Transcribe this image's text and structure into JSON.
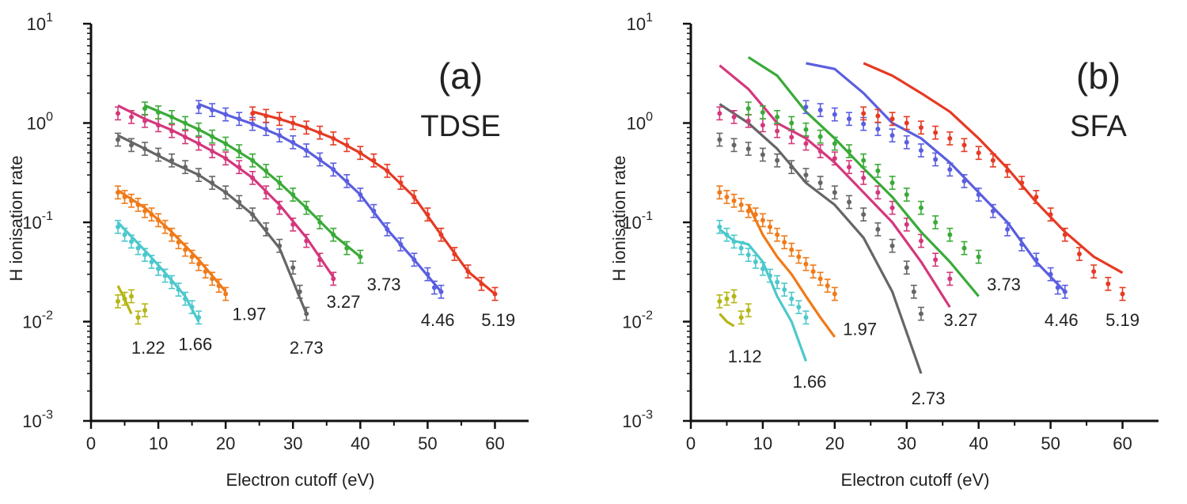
{
  "chart_data": [
    {
      "type": "scatter",
      "panel_label": "(a)",
      "method_label": "TDSE",
      "xlabel": "Electron cutoff (eV)",
      "ylabel": "H ionisation rate",
      "xlim": [
        0,
        65
      ],
      "ylim": [
        0.001,
        10
      ],
      "y_scale": "log",
      "x_ticks": [
        "0",
        "10",
        "20",
        "30",
        "40",
        "50",
        "60"
      ],
      "y_ticks": [
        {
          "base": "10",
          "exp": "-3"
        },
        {
          "base": "10",
          "exp": "-2"
        },
        {
          "base": "10",
          "exp": "-1"
        },
        {
          "base": "10",
          "exp": "0"
        },
        {
          "base": "10",
          "exp": "1"
        }
      ],
      "series": [
        {
          "name": "1.22",
          "color": "#b5b516",
          "label_x": 8.5,
          "label_y": 0.0055,
          "x": [
            4,
            5,
            6,
            7,
            8
          ],
          "y": [
            0.016,
            0.017,
            0.018,
            0.011,
            0.013
          ],
          "fit_x": [
            4,
            5,
            6
          ],
          "fit_y": [
            0.023,
            0.017,
            0.012
          ]
        },
        {
          "name": "1.66",
          "color": "#4cc8cc",
          "label_x": 15.5,
          "label_y": 0.006,
          "x": [
            4,
            5,
            6,
            7,
            8,
            9,
            10,
            11,
            12,
            13,
            14,
            15,
            16
          ],
          "y": [
            0.09,
            0.075,
            0.064,
            0.055,
            0.047,
            0.04,
            0.034,
            0.029,
            0.025,
            0.021,
            0.017,
            0.014,
            0.011
          ],
          "fit_x": [
            4,
            6,
            8,
            10,
            12,
            14,
            16
          ],
          "fit_y": [
            0.1,
            0.072,
            0.052,
            0.037,
            0.026,
            0.018,
            0.01
          ]
        },
        {
          "name": "1.97",
          "color": "#f07a18",
          "label_x": 23.5,
          "label_y": 0.012,
          "x": [
            4,
            5,
            6,
            7,
            8,
            9,
            10,
            11,
            12,
            13,
            14,
            15,
            16,
            17,
            18,
            19,
            20
          ],
          "y": [
            0.2,
            0.18,
            0.165,
            0.15,
            0.13,
            0.12,
            0.105,
            0.09,
            0.075,
            0.063,
            0.053,
            0.045,
            0.038,
            0.032,
            0.027,
            0.023,
            0.019
          ],
          "fit_x": [
            4,
            8,
            12,
            16,
            20
          ],
          "fit_y": [
            0.21,
            0.14,
            0.08,
            0.042,
            0.02
          ]
        },
        {
          "name": "2.73",
          "color": "#666666",
          "label_x": 32,
          "label_y": 0.0055,
          "x": [
            4,
            6,
            8,
            10,
            12,
            14,
            16,
            18,
            20,
            22,
            24,
            26,
            28,
            30,
            31,
            32
          ],
          "y": [
            0.68,
            0.6,
            0.55,
            0.48,
            0.42,
            0.36,
            0.3,
            0.25,
            0.2,
            0.16,
            0.12,
            0.085,
            0.058,
            0.035,
            0.02,
            0.012
          ],
          "fit_x": [
            4,
            8,
            12,
            16,
            20,
            24,
            28,
            32
          ],
          "fit_y": [
            0.75,
            0.55,
            0.4,
            0.3,
            0.2,
            0.12,
            0.055,
            0.012
          ]
        },
        {
          "name": "3.27",
          "color": "#d4387c",
          "label_x": 37.5,
          "label_y": 0.016,
          "x": [
            4,
            6,
            8,
            10,
            12,
            14,
            16,
            18,
            20,
            22,
            24,
            26,
            28,
            30,
            32,
            34,
            36
          ],
          "y": [
            1.25,
            1.15,
            1.05,
            0.95,
            0.83,
            0.72,
            0.62,
            0.52,
            0.44,
            0.36,
            0.28,
            0.2,
            0.14,
            0.095,
            0.065,
            0.042,
            0.027
          ],
          "fit_x": [
            4,
            8,
            12,
            16,
            20,
            24,
            28,
            32,
            36
          ],
          "fit_y": [
            1.5,
            1.1,
            0.85,
            0.62,
            0.44,
            0.28,
            0.15,
            0.07,
            0.028
          ]
        },
        {
          "name": "3.73",
          "color": "#3aaa38",
          "label_x": 43.5,
          "label_y": 0.024,
          "x": [
            8,
            10,
            12,
            14,
            16,
            18,
            20,
            22,
            24,
            26,
            28,
            30,
            32,
            34,
            36,
            38,
            40
          ],
          "y": [
            1.4,
            1.28,
            1.15,
            1.0,
            0.86,
            0.73,
            0.62,
            0.52,
            0.42,
            0.33,
            0.25,
            0.19,
            0.14,
            0.1,
            0.075,
            0.055,
            0.045
          ],
          "fit_x": [
            8,
            12,
            16,
            20,
            24,
            28,
            32,
            36,
            40
          ],
          "fit_y": [
            1.5,
            1.15,
            0.86,
            0.62,
            0.42,
            0.25,
            0.14,
            0.075,
            0.045
          ]
        },
        {
          "name": "4.46",
          "color": "#5a5ee0",
          "label_x": 51.5,
          "label_y": 0.0105,
          "x": [
            16,
            18,
            20,
            22,
            24,
            26,
            28,
            30,
            32,
            34,
            36,
            38,
            40,
            42,
            44,
            46,
            48,
            50,
            51,
            52
          ],
          "y": [
            1.45,
            1.35,
            1.22,
            1.1,
            0.98,
            0.87,
            0.75,
            0.64,
            0.53,
            0.43,
            0.34,
            0.26,
            0.19,
            0.13,
            0.085,
            0.06,
            0.042,
            0.03,
            0.022,
            0.02
          ],
          "fit_x": [
            16,
            20,
            24,
            28,
            32,
            36,
            40,
            44,
            48,
            52
          ],
          "fit_y": [
            1.55,
            1.22,
            0.98,
            0.75,
            0.53,
            0.34,
            0.19,
            0.085,
            0.042,
            0.02
          ]
        },
        {
          "name": "5.19",
          "color": "#e63a24",
          "label_x": 60.5,
          "label_y": 0.0105,
          "x": [
            24,
            26,
            28,
            30,
            32,
            34,
            36,
            38,
            40,
            42,
            44,
            46,
            48,
            50,
            52,
            54,
            56,
            58,
            60
          ],
          "y": [
            1.25,
            1.18,
            1.1,
            1.0,
            0.9,
            0.8,
            0.7,
            0.6,
            0.5,
            0.42,
            0.33,
            0.25,
            0.18,
            0.12,
            0.075,
            0.048,
            0.032,
            0.024,
            0.019
          ],
          "fit_x": [
            24,
            28,
            32,
            36,
            40,
            44,
            48,
            52,
            56,
            60
          ],
          "fit_y": [
            1.3,
            1.1,
            0.9,
            0.7,
            0.5,
            0.33,
            0.18,
            0.075,
            0.032,
            0.019
          ]
        }
      ]
    },
    {
      "type": "scatter",
      "panel_label": "(b)",
      "method_label": "SFA",
      "xlabel": "Electron cutoff (eV)",
      "ylabel": "H ionisation rate",
      "xlim": [
        0,
        65
      ],
      "ylim": [
        0.001,
        10
      ],
      "y_scale": "log",
      "x_ticks": [
        "0",
        "10",
        "20",
        "30",
        "40",
        "50",
        "60"
      ],
      "y_ticks": [
        {
          "base": "10",
          "exp": "-3"
        },
        {
          "base": "10",
          "exp": "-2"
        },
        {
          "base": "10",
          "exp": "-1"
        },
        {
          "base": "10",
          "exp": "0"
        },
        {
          "base": "10",
          "exp": "1"
        }
      ],
      "series": [
        {
          "name": "1.12",
          "color": "#b5b516",
          "label_x": 7.5,
          "label_y": 0.0045,
          "x": [
            4,
            5,
            6,
            7,
            8
          ],
          "y": [
            0.016,
            0.017,
            0.018,
            0.011,
            0.013
          ],
          "fit_x": [
            4,
            5,
            6
          ],
          "fit_y": [
            0.012,
            0.01,
            0.009
          ]
        },
        {
          "name": "1.66",
          "color": "#4cc8cc",
          "label_x": 16.5,
          "label_y": 0.0025,
          "x": [
            4,
            5,
            6,
            7,
            8,
            9,
            10,
            11,
            12,
            13,
            14,
            15,
            16
          ],
          "y": [
            0.09,
            0.075,
            0.064,
            0.055,
            0.047,
            0.04,
            0.034,
            0.029,
            0.025,
            0.021,
            0.017,
            0.014,
            0.011
          ],
          "fit_x": [
            4,
            6,
            8,
            10,
            12,
            14,
            16
          ],
          "fit_y": [
            0.085,
            0.065,
            0.06,
            0.04,
            0.018,
            0.01,
            0.004
          ]
        },
        {
          "name": "1.97",
          "color": "#f07a18",
          "label_x": 23.5,
          "label_y": 0.0085,
          "x": [
            4,
            5,
            6,
            7,
            8,
            9,
            10,
            11,
            12,
            13,
            14,
            15,
            16,
            17,
            18,
            19,
            20
          ],
          "y": [
            0.2,
            0.18,
            0.165,
            0.15,
            0.13,
            0.12,
            0.105,
            0.09,
            0.075,
            0.063,
            0.053,
            0.045,
            0.038,
            0.032,
            0.027,
            0.023,
            0.019
          ],
          "fit_x": [
            8,
            10,
            12,
            14,
            16,
            18,
            20
          ],
          "fit_y": [
            0.15,
            0.075,
            0.045,
            0.03,
            0.018,
            0.011,
            0.007
          ]
        },
        {
          "name": "2.73",
          "color": "#666666",
          "label_x": 33,
          "label_y": 0.0017,
          "x": [
            4,
            6,
            8,
            10,
            12,
            14,
            16,
            18,
            20,
            22,
            24,
            26,
            28,
            30,
            31,
            32
          ],
          "y": [
            0.68,
            0.6,
            0.55,
            0.48,
            0.42,
            0.36,
            0.3,
            0.25,
            0.2,
            0.16,
            0.12,
            0.085,
            0.058,
            0.035,
            0.02,
            0.012
          ],
          "fit_x": [
            4,
            8,
            12,
            16,
            20,
            24,
            28,
            32
          ],
          "fit_y": [
            1.55,
            1.0,
            0.55,
            0.25,
            0.15,
            0.07,
            0.02,
            0.003
          ]
        },
        {
          "name": "3.27",
          "color": "#d4387c",
          "label_x": 37.5,
          "label_y": 0.0105,
          "x": [
            4,
            6,
            8,
            10,
            12,
            14,
            16,
            18,
            20,
            22,
            24,
            26,
            28,
            30,
            32,
            34,
            36
          ],
          "y": [
            1.25,
            1.15,
            1.05,
            0.95,
            0.83,
            0.72,
            0.62,
            0.52,
            0.44,
            0.36,
            0.28,
            0.2,
            0.14,
            0.095,
            0.065,
            0.042,
            0.027
          ],
          "fit_x": [
            4,
            8,
            12,
            16,
            20,
            24,
            28,
            32,
            36
          ],
          "fit_y": [
            3.8,
            2.2,
            1.0,
            0.7,
            0.4,
            0.2,
            0.1,
            0.04,
            0.014
          ]
        },
        {
          "name": "3.73",
          "color": "#3aaa38",
          "label_x": 43.5,
          "label_y": 0.024,
          "x": [
            8,
            10,
            12,
            14,
            16,
            18,
            20,
            22,
            24,
            26,
            28,
            30,
            32,
            34,
            36,
            38,
            40
          ],
          "y": [
            1.4,
            1.28,
            1.15,
            1.0,
            0.86,
            0.73,
            0.62,
            0.52,
            0.42,
            0.33,
            0.25,
            0.19,
            0.14,
            0.1,
            0.075,
            0.055,
            0.045
          ],
          "fit_x": [
            8,
            12,
            16,
            20,
            24,
            28,
            32,
            36,
            40
          ],
          "fit_y": [
            4.6,
            3.0,
            1.3,
            0.7,
            0.35,
            0.18,
            0.08,
            0.04,
            0.018
          ]
        },
        {
          "name": "4.46",
          "color": "#5a5ee0",
          "label_x": 51.5,
          "label_y": 0.0105,
          "x": [
            16,
            18,
            20,
            22,
            24,
            26,
            28,
            30,
            32,
            34,
            36,
            38,
            40,
            42,
            44,
            46,
            48,
            50,
            51,
            52
          ],
          "y": [
            1.45,
            1.35,
            1.22,
            1.1,
            0.98,
            0.87,
            0.75,
            0.64,
            0.53,
            0.43,
            0.34,
            0.26,
            0.19,
            0.13,
            0.085,
            0.06,
            0.042,
            0.03,
            0.022,
            0.02
          ],
          "fit_x": [
            16,
            20,
            24,
            28,
            32,
            36,
            40,
            44,
            48,
            52
          ],
          "fit_y": [
            4.0,
            3.5,
            2.0,
            1.0,
            0.7,
            0.4,
            0.2,
            0.1,
            0.04,
            0.02
          ]
        },
        {
          "name": "5.19",
          "color": "#e63a24",
          "label_x": 60,
          "label_y": 0.0105,
          "x": [
            24,
            26,
            28,
            30,
            32,
            34,
            36,
            38,
            40,
            42,
            44,
            46,
            48,
            50,
            52,
            54,
            56,
            58,
            60
          ],
          "y": [
            1.25,
            1.18,
            1.1,
            1.0,
            0.9,
            0.8,
            0.7,
            0.6,
            0.5,
            0.42,
            0.33,
            0.25,
            0.18,
            0.12,
            0.075,
            0.048,
            0.032,
            0.024,
            0.019
          ],
          "fit_x": [
            24,
            28,
            32,
            36,
            40,
            44,
            48,
            52,
            56,
            60
          ],
          "fit_y": [
            4.0,
            3.0,
            2.0,
            1.3,
            0.7,
            0.35,
            0.16,
            0.08,
            0.045,
            0.031
          ]
        }
      ]
    }
  ]
}
